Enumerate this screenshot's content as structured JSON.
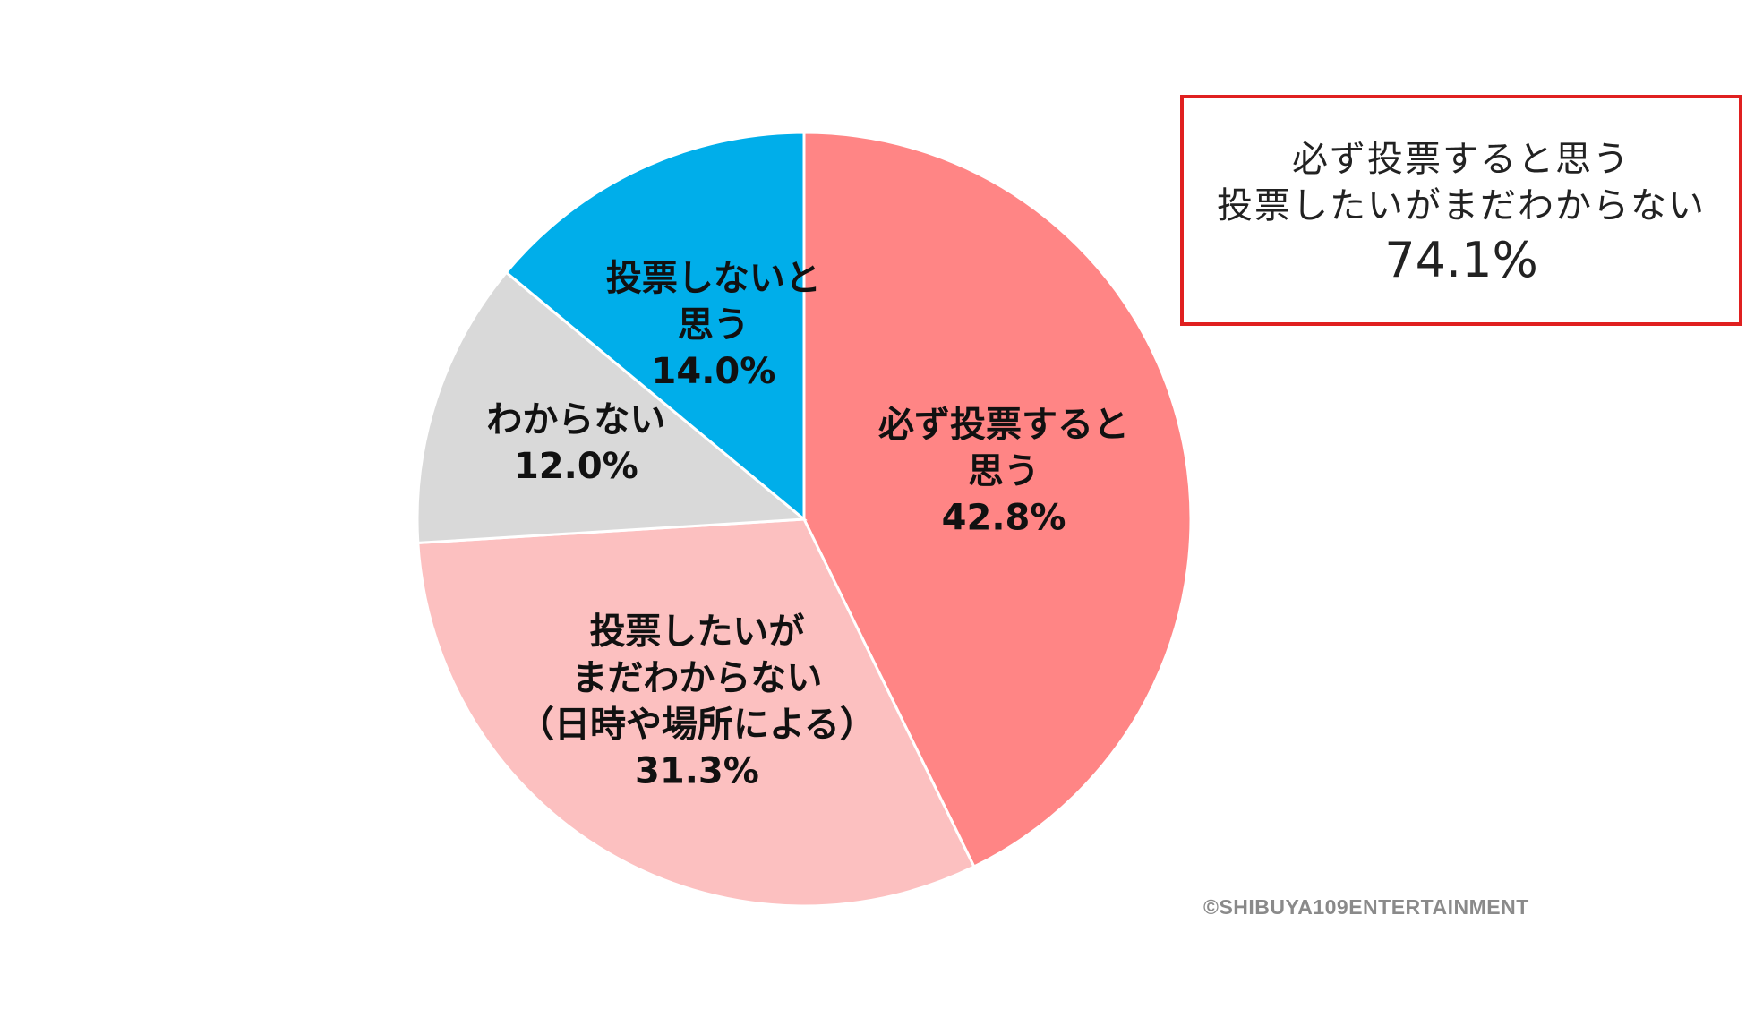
{
  "chart_data": {
    "type": "pie",
    "start_angle_deg": 0,
    "direction": "clockwise",
    "slices": [
      {
        "label_lines": [
          "必ず投票すると",
          "思う"
        ],
        "value": 42.8,
        "value_label": "42.8%",
        "color": "#ff8585"
      },
      {
        "label_lines": [
          "投票したいが",
          "まだわからない",
          "（日時や場所による）"
        ],
        "value": 31.3,
        "value_label": "31.3%",
        "color": "#fcc0c0"
      },
      {
        "label_lines": [
          "わからない"
        ],
        "value": 12.0,
        "value_label": "12.0%",
        "color": "#d9d9d9"
      },
      {
        "label_lines": [
          "投票しないと",
          "思う"
        ],
        "value": 14.0,
        "value_label": "14.0%",
        "color": "#00aeea"
      }
    ]
  },
  "summary": {
    "line1": "必ず投票すると思う",
    "line2": "投票したいがまだわからない",
    "value": "74.1%",
    "border_color": "#e02020"
  },
  "copyright": "©SHIBUYA109ENTERTAINMENT"
}
